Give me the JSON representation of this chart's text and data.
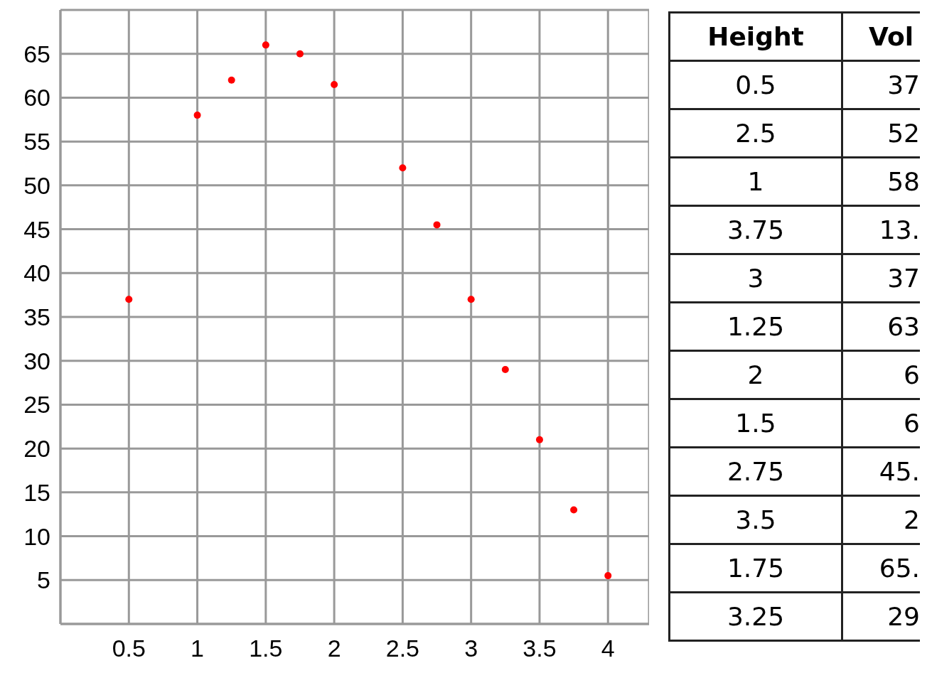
{
  "chart_data": [
    {
      "type": "scatter",
      "x": [
        0.5,
        1,
        1.25,
        1.5,
        1.75,
        2,
        2.5,
        2.75,
        3,
        3.25,
        3.5,
        3.75,
        4
      ],
      "series": [
        {
          "color": "#ff0000",
          "values": [
            37,
            58,
            62,
            66,
            65,
            61.5,
            52,
            45.5,
            37,
            29,
            21,
            13,
            5.5
          ]
        }
      ],
      "xlim": [
        0,
        4.3
      ],
      "xticks": [
        0.5,
        1,
        1.5,
        2,
        2.5,
        3,
        3.5,
        4
      ],
      "ylim": [
        0,
        70
      ],
      "yticks": [
        5,
        10,
        15,
        20,
        25,
        30,
        35,
        40,
        45,
        50,
        55,
        60,
        65
      ],
      "grid": true,
      "marker": "circle",
      "legend": false
    },
    {
      "type": "other",
      "annotations": [
        "Height",
        "Vol",
        "0.5",
        "37",
        "2.5",
        "52",
        "1",
        "58",
        "3.75",
        "13.",
        "3",
        "37",
        "1.25",
        "63",
        "2",
        "6",
        "1.5",
        "6",
        "2.75",
        "45.",
        "3.5",
        "2",
        "1.75",
        "65.",
        "3.25",
        "29"
      ]
    }
  ]
}
